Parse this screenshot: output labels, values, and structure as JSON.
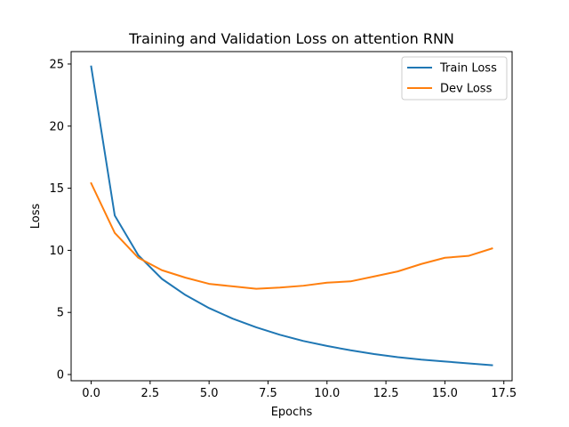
{
  "chart_data": {
    "type": "line",
    "title": "Training and Validation Loss on attention RNN",
    "xlabel": "Epochs",
    "ylabel": "Loss",
    "xlim": [
      -0.85,
      17.85
    ],
    "ylim": [
      -0.5,
      26.0
    ],
    "xticks": [
      0.0,
      2.5,
      5.0,
      7.5,
      10.0,
      12.5,
      15.0,
      17.5
    ],
    "xtick_labels": [
      "0.0",
      "2.5",
      "5.0",
      "7.5",
      "10.0",
      "12.5",
      "15.0",
      "17.5"
    ],
    "yticks": [
      0,
      5,
      10,
      15,
      20,
      25
    ],
    "ytick_labels": [
      "0",
      "5",
      "10",
      "15",
      "20",
      "25"
    ],
    "grid": false,
    "legend_position": "top-right",
    "x": [
      0,
      1,
      2,
      3,
      4,
      5,
      6,
      7,
      8,
      9,
      10,
      11,
      12,
      13,
      14,
      15,
      16,
      17
    ],
    "series": [
      {
        "name": "Train Loss",
        "color": "#1f77b4",
        "values": [
          24.8,
          12.8,
          9.6,
          7.7,
          6.4,
          5.35,
          4.5,
          3.8,
          3.2,
          2.7,
          2.3,
          1.95,
          1.65,
          1.4,
          1.2,
          1.05,
          0.9,
          0.75
        ]
      },
      {
        "name": "Dev Loss",
        "color": "#ff7f0e",
        "values": [
          15.4,
          11.4,
          9.4,
          8.4,
          7.8,
          7.3,
          7.1,
          6.9,
          7.0,
          7.15,
          7.4,
          7.5,
          7.9,
          8.3,
          8.9,
          9.4,
          9.55,
          10.15
        ]
      }
    ]
  }
}
